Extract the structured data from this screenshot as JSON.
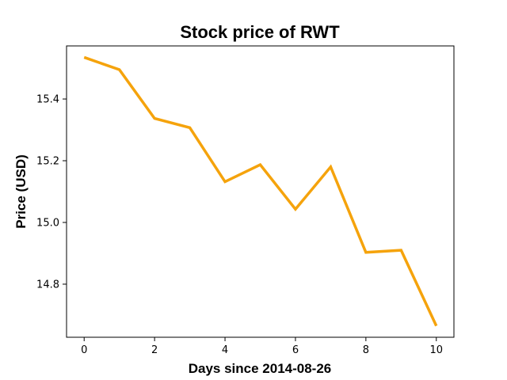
{
  "chart_data": {
    "type": "line",
    "title": "Stock price of RWT",
    "xlabel": "Days since 2014-08-26",
    "ylabel": "Price (USD)",
    "x": [
      0,
      1,
      2,
      3,
      4,
      5,
      6,
      7,
      8,
      9,
      10
    ],
    "series": [
      {
        "values": [
          15.535,
          15.495,
          15.337,
          15.307,
          15.132,
          15.187,
          15.043,
          15.18,
          14.903,
          14.91,
          14.665
        ],
        "color": "#f5a30c"
      }
    ],
    "xlim": [
      -0.5,
      10.5
    ],
    "ylim": [
      14.628,
      15.572
    ],
    "xticks": [
      0,
      2,
      4,
      6,
      8,
      10
    ],
    "yticks": [
      14.8,
      15.0,
      15.2,
      15.4
    ],
    "xtick_labels": [
      "0",
      "2",
      "4",
      "6",
      "8",
      "10"
    ],
    "ytick_labels": [
      "14.8",
      "15.0",
      "15.2",
      "15.4"
    ],
    "grid": false,
    "legend": false
  }
}
